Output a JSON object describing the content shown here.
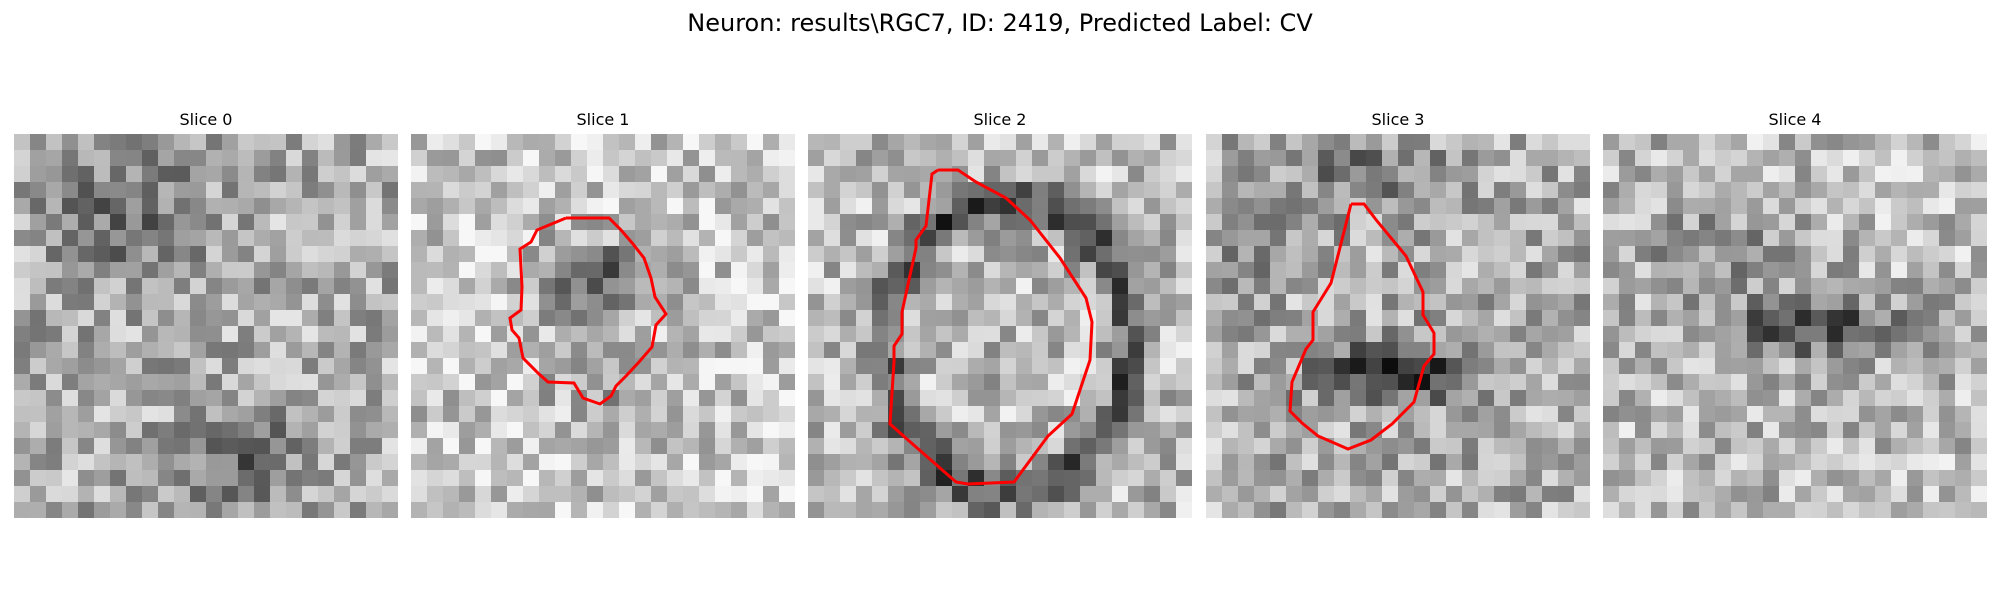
{
  "figure": {
    "title": "Neuron: results\\RGC7, ID: 2419, Predicted Label: CV"
  },
  "slices": [
    {
      "label": "Slice 0",
      "has_contour": false
    },
    {
      "label": "Slice 1",
      "has_contour": true
    },
    {
      "label": "Slice 2",
      "has_contour": true
    },
    {
      "label": "Slice 3",
      "has_contour": true
    },
    {
      "label": "Slice 4",
      "has_contour": false
    }
  ],
  "colors": {
    "contour": "#ff0000",
    "background": "#ffffff"
  }
}
